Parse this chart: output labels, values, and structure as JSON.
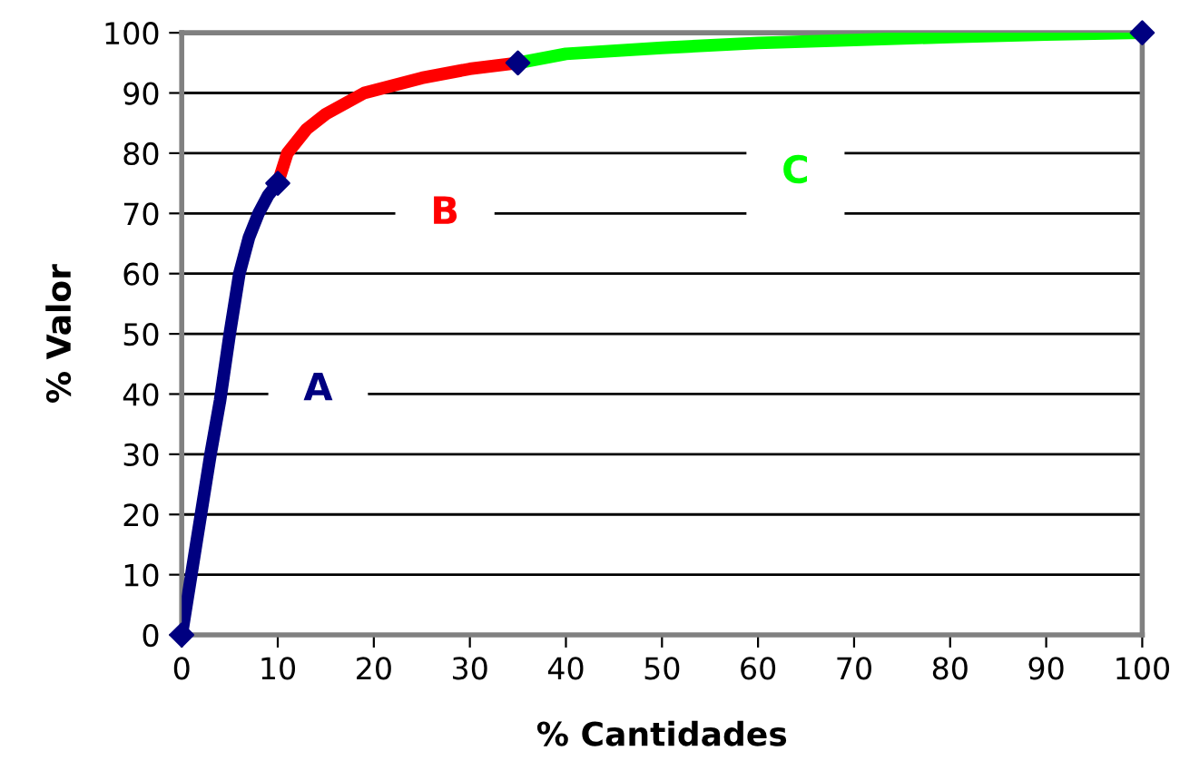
{
  "chart_data": {
    "type": "line",
    "xlabel": "% Cantidades",
    "ylabel": "% Valor",
    "xlim": [
      0,
      100
    ],
    "ylim": [
      0,
      100
    ],
    "xticks": [
      0,
      10,
      20,
      30,
      40,
      50,
      60,
      70,
      80,
      90,
      100
    ],
    "yticks": [
      0,
      10,
      20,
      30,
      40,
      50,
      60,
      70,
      80,
      90,
      100
    ],
    "grid": "y",
    "line_style": "solid",
    "series": [
      {
        "color": "#000080",
        "x": [
          0,
          1,
          2,
          3,
          4,
          5,
          6,
          7,
          8,
          9,
          10
        ],
        "values": [
          0,
          10,
          20,
          30,
          39,
          50,
          60,
          66,
          70,
          73,
          75
        ]
      },
      {
        "color": "#ff0000",
        "x": [
          10,
          11,
          13,
          15,
          19,
          25,
          30,
          35
        ],
        "values": [
          75,
          80,
          84,
          86.5,
          90,
          92.5,
          94,
          95
        ]
      },
      {
        "color": "#00ff00",
        "x": [
          35,
          40,
          50,
          60,
          70,
          80,
          90,
          100
        ],
        "values": [
          95,
          96.5,
          97.5,
          98.3,
          98.8,
          99.3,
          99.7,
          100
        ]
      },
      {
        "type": "scatter",
        "marker": "diamond",
        "color": "#000080",
        "x": [
          0,
          10,
          35,
          100
        ],
        "values": [
          0,
          75,
          95,
          100
        ]
      }
    ],
    "annotations": [
      "A",
      "B",
      "C"
    ]
  }
}
